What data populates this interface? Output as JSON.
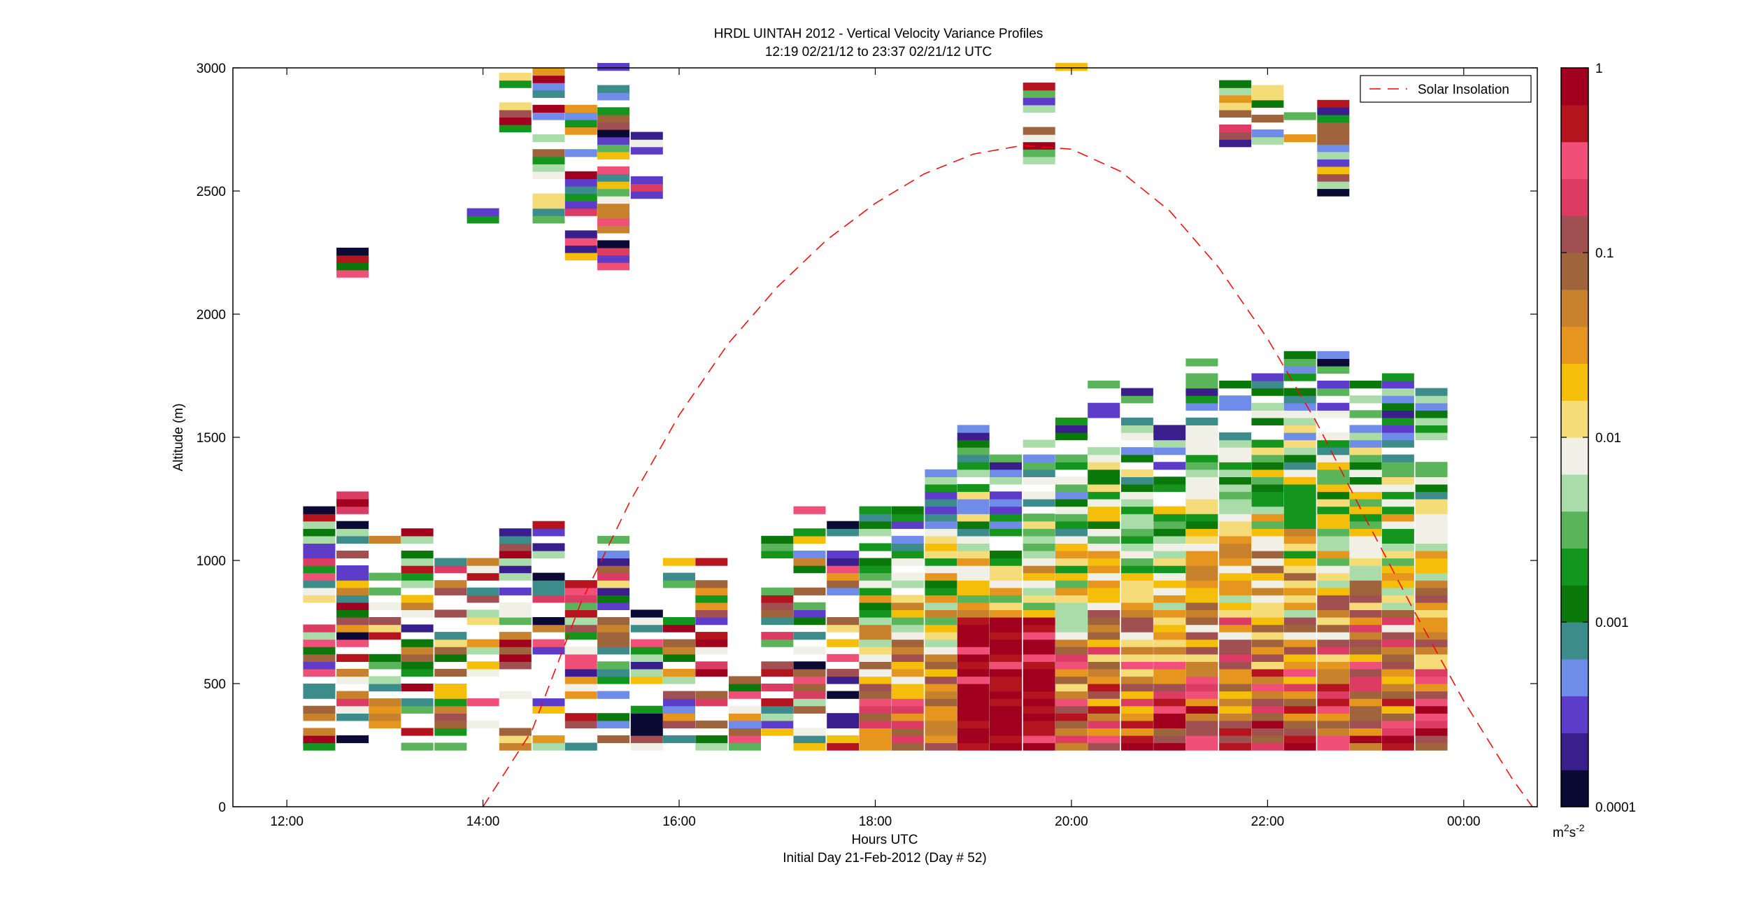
{
  "chart_data": {
    "type": "heatmap",
    "title": "HRDL UINTAH 2012 - Vertical Velocity Variance Profiles",
    "subtitle": "12:19 02/21/12 to 23:37 02/21/12  UTC",
    "xlabel": "Hours UTC",
    "xlabel2": "Initial Day 21-Feb-2012 (Day # 52)",
    "ylabel": "Altitude (m)",
    "xlim": [
      11.45,
      24.75
    ],
    "ylim": [
      0,
      3000
    ],
    "x_ticks": [
      12,
      14,
      16,
      18,
      20,
      22,
      24
    ],
    "x_tick_labels": [
      "12:00",
      "14:00",
      "16:00",
      "18:00",
      "20:00",
      "22:00",
      "00:00"
    ],
    "y_ticks": [
      0,
      500,
      1000,
      1500,
      2000,
      2500,
      3000
    ],
    "y_tick_labels": [
      "0",
      "500",
      "1000",
      "1500",
      "2000",
      "2500",
      "3000"
    ],
    "grid": false,
    "colorbar": {
      "scale": "log",
      "range": [
        0.0001,
        1
      ],
      "ticks": [
        1,
        0.1,
        0.01,
        0.001,
        0.0001
      ],
      "tick_labels": [
        "1",
        "0.1",
        "0.01",
        "0.001",
        "0.0001"
      ],
      "unit_label": "m",
      "unit_exponent": "2",
      "unit_suffix": "s",
      "unit_suffix_exponent": "-2",
      "colormap": [
        "#0a0a35",
        "#3a1e8c",
        "#5c3cc8",
        "#6e8ce8",
        "#3c8c8c",
        "#0a780a",
        "#14961e",
        "#5ab45a",
        "#aadcaa",
        "#f0f0e6",
        "#f5dc78",
        "#f5be0a",
        "#e6961e",
        "#c8822d",
        "#a0643c",
        "#a05050",
        "#dc3c64",
        "#f05078",
        "#b4141e",
        "#a0001e"
      ]
    },
    "legend": {
      "position": "top-right",
      "entries": [
        "Solar Insolation"
      ]
    },
    "solar_insolation": {
      "x": [
        14.0,
        14.5,
        15.0,
        15.5,
        16.0,
        16.5,
        17.0,
        17.5,
        18.0,
        18.5,
        19.0,
        19.5,
        20.0,
        20.5,
        21.0,
        21.5,
        22.0,
        22.5,
        23.0,
        23.5,
        24.0,
        24.5,
        24.7
      ],
      "y": [
        0,
        310,
        830,
        1240,
        1590,
        1880,
        2110,
        2300,
        2450,
        2570,
        2650,
        2685,
        2670,
        2580,
        2420,
        2190,
        1900,
        1560,
        1170,
        790,
        430,
        110,
        0
      ]
    },
    "profile_times": [
      12.33,
      12.67,
      13.0,
      13.33,
      13.67,
      14.0,
      14.33,
      14.67,
      15.0,
      15.33,
      15.67,
      16.0,
      16.33,
      16.67,
      17.0,
      17.33,
      17.67,
      18.0,
      18.33,
      18.67,
      19.0,
      19.33,
      19.67,
      20.0,
      20.33,
      20.67,
      21.0,
      21.33,
      21.67,
      22.0,
      22.33,
      22.67,
      23.0,
      23.33,
      23.67
    ],
    "profile_tops_m": [
      1250,
      1270,
      1100,
      1150,
      1040,
      1000,
      1150,
      1150,
      920,
      1120,
      820,
      1000,
      1000,
      520,
      1100,
      1230,
      1160,
      1220,
      1220,
      1360,
      1530,
      1420,
      1500,
      1580,
      1740,
      1690,
      1570,
      1820,
      1720,
      1870,
      1830,
      1830,
      1760,
      1740,
      1720
    ],
    "profile_bottom_m": 230,
    "range_gate_m": 30,
    "upper_clusters": [
      {
        "t": 12.67,
        "from": 2120,
        "to": 2270
      },
      {
        "t": 14.0,
        "from": 2370,
        "to": 2430
      },
      {
        "t": 14.33,
        "from": 2740,
        "to": 3000
      },
      {
        "t": 14.67,
        "from": 2370,
        "to": 3000
      },
      {
        "t": 15.0,
        "from": 2130,
        "to": 2830
      },
      {
        "t": 15.33,
        "from": 2180,
        "to": 3000
      },
      {
        "t": 15.67,
        "from": 2380,
        "to": 2770
      },
      {
        "t": 19.67,
        "from": 2610,
        "to": 2920
      },
      {
        "t": 20.0,
        "from": 2960,
        "to": 3000
      },
      {
        "t": 21.67,
        "from": 2680,
        "to": 3000
      },
      {
        "t": 22.0,
        "from": 2690,
        "to": 2980
      },
      {
        "t": 22.33,
        "from": 2700,
        "to": 2810
      },
      {
        "t": 22.67,
        "from": 2480,
        "to": 2900
      }
    ]
  }
}
